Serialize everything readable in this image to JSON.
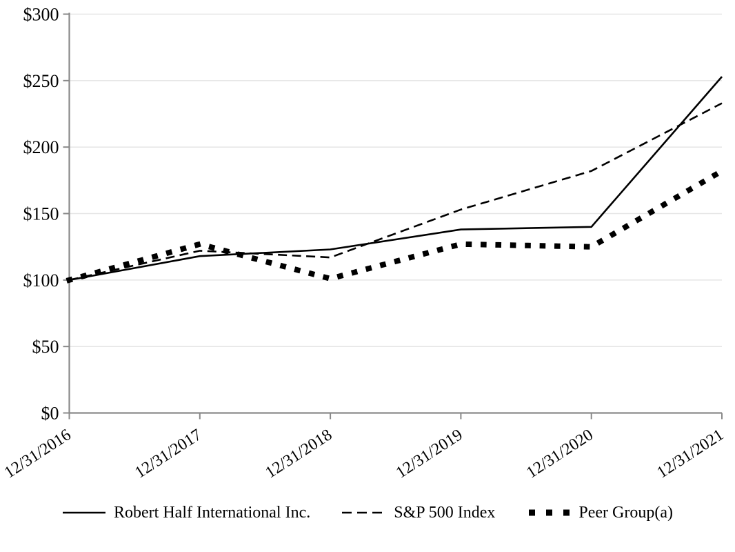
{
  "chart_data": {
    "type": "line",
    "title": "",
    "xlabel": "",
    "ylabel": "",
    "categories": [
      "12/31/2016",
      "12/31/2017",
      "12/31/2018",
      "12/31/2019",
      "12/31/2020",
      "12/31/2021"
    ],
    "series": [
      {
        "name": "Robert Half International Inc.",
        "style": "solid",
        "values": [
          100,
          118,
          123,
          138,
          140,
          253
        ]
      },
      {
        "name": "S&P 500 Index",
        "style": "dashed",
        "values": [
          100,
          122,
          117,
          153,
          182,
          233
        ]
      },
      {
        "name": "Peer Group(a)",
        "style": "dotted",
        "values": [
          100,
          127,
          101,
          127,
          125,
          182
        ]
      }
    ],
    "ylim": [
      0,
      300
    ],
    "y_ticks": [
      0,
      50,
      100,
      150,
      200,
      250,
      300
    ],
    "y_tick_labels": [
      "$0",
      "$50",
      "$100",
      "$150",
      "$200",
      "$250",
      "$300"
    ],
    "grid": "horizontal-only",
    "legend_position": "bottom",
    "colors": {
      "series_line": "#000000",
      "gridline": "#e6e6e6",
      "axis": "#898989",
      "text": "#000000",
      "background": "#ffffff"
    }
  }
}
